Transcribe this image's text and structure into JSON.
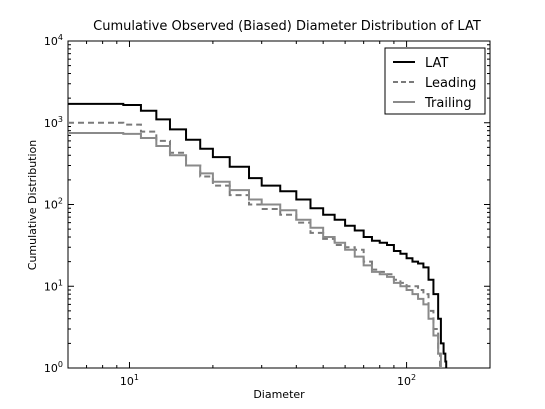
{
  "chart_data": {
    "type": "line",
    "title": "Cumulative Observed (Biased) Diameter Distribution of LAT",
    "xlabel": "Diameter",
    "ylabel": "Cumulative Distribution",
    "xscale": "log",
    "yscale": "log",
    "xlim": [
      6.0,
      200.0
    ],
    "ylim": [
      1,
      10000
    ],
    "x_ticks": [
      {
        "value": 10,
        "label_base": "10",
        "label_exp": "1"
      },
      {
        "value": 100,
        "label_base": "10",
        "label_exp": "2"
      }
    ],
    "y_ticks": [
      {
        "value": 1,
        "label_base": "10",
        "label_exp": "0"
      },
      {
        "value": 10,
        "label_base": "10",
        "label_exp": "1"
      },
      {
        "value": 100,
        "label_base": "10",
        "label_exp": "2"
      },
      {
        "value": 1000,
        "label_base": "10",
        "label_exp": "3"
      },
      {
        "value": 10000,
        "label_base": "10",
        "label_exp": "4"
      }
    ],
    "grid": false,
    "legend_position": "top-right",
    "series": [
      {
        "name": "LAT",
        "color": "#000000",
        "dash": "solid",
        "x": [
          6.0,
          8.0,
          9.5,
          11.0,
          12.5,
          14.0,
          16.0,
          18.0,
          20.0,
          23.0,
          27.0,
          30.0,
          35.0,
          40.0,
          45.0,
          50.0,
          55.0,
          60.0,
          65.0,
          70.0,
          75.0,
          80.0,
          85.0,
          90.0,
          95.0,
          100.0,
          105.0,
          110.0,
          115.0,
          120.0,
          125.0,
          130.0,
          133.0,
          136.0,
          138.0,
          139.0,
          139.0
        ],
        "y": [
          1700,
          1700,
          1650,
          1400,
          1100,
          830,
          620,
          480,
          380,
          290,
          210,
          170,
          145,
          115,
          90,
          75,
          65,
          55,
          48,
          40,
          36,
          34,
          32,
          27,
          25,
          22,
          20,
          19,
          17,
          12,
          8,
          4,
          2,
          1.5,
          1.2,
          1.0,
          0.8
        ]
      },
      {
        "name": "Leading",
        "color": "#7a7a7a",
        "dash": "dashed",
        "x": [
          6.0,
          8.0,
          9.5,
          11.0,
          12.5,
          14.0,
          16.0,
          18.0,
          20.0,
          23.0,
          27.0,
          30.0,
          35.0,
          40.0,
          45.0,
          50.0,
          55.0,
          60.0,
          65.0,
          70.0,
          75.0,
          80.0,
          85.0,
          90.0,
          95.0,
          100.0,
          105.0,
          110.0,
          115.0,
          120.0,
          125.0,
          130.0,
          132.0
        ],
        "y": [
          1000,
          1000,
          950,
          780,
          600,
          430,
          300,
          220,
          170,
          130,
          100,
          88,
          75,
          60,
          45,
          38,
          32,
          30,
          28,
          20,
          16,
          15,
          14,
          12,
          11,
          10,
          10,
          9,
          8,
          5,
          3,
          1.5,
          1.0
        ]
      },
      {
        "name": "Trailing",
        "color": "#8a8a8a",
        "dash": "solid",
        "x": [
          6.0,
          8.0,
          9.5,
          11.0,
          12.5,
          14.0,
          16.0,
          18.0,
          20.0,
          23.0,
          27.0,
          30.0,
          35.0,
          40.0,
          45.0,
          50.0,
          55.0,
          60.0,
          65.0,
          70.0,
          75.0,
          80.0,
          85.0,
          90.0,
          95.0,
          100.0,
          105.0,
          110.0,
          115.0,
          120.0,
          125.0,
          130.0,
          133.0,
          135.0
        ],
        "y": [
          750,
          750,
          730,
          650,
          520,
          400,
          300,
          240,
          190,
          150,
          115,
          100,
          85,
          65,
          52,
          40,
          34,
          28,
          23,
          18,
          15,
          14,
          13,
          11,
          10,
          9,
          8,
          7,
          6,
          4,
          2.5,
          1.5,
          1.0,
          0.9
        ]
      }
    ]
  }
}
